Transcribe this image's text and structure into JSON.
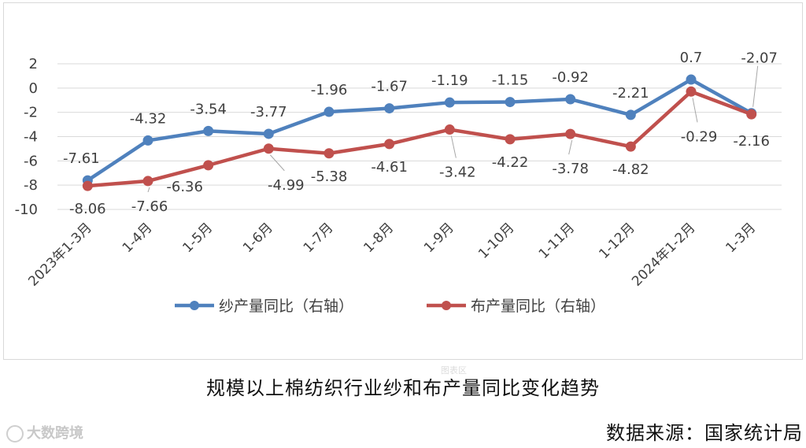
{
  "chart_data": {
    "type": "line",
    "categories": [
      "2023年1-3月",
      "1-4月",
      "1-5月",
      "1-6月",
      "1-7月",
      "1-8月",
      "1-9月",
      "1-10月",
      "1-11月",
      "1-12月",
      "2024年1-2月",
      "1-3月"
    ],
    "series": [
      {
        "name": "纱产量同比（右轴）",
        "color": "#4f81bd",
        "values": [
          -7.61,
          -4.32,
          -3.54,
          -3.77,
          -1.96,
          -1.67,
          -1.19,
          -1.15,
          -0.92,
          -2.21,
          0.7,
          -2.07
        ],
        "labels": [
          "-7.61",
          "-4.32",
          "-3.54",
          "-3.77",
          "-1.96",
          "-1.67",
          "-1.19",
          "-1.15",
          "-0.92",
          "-2.21",
          "0.7",
          "-2.07"
        ]
      },
      {
        "name": "布产量同比（右轴）",
        "color": "#c0504d",
        "values": [
          -8.06,
          -7.66,
          -6.36,
          -4.99,
          -5.38,
          -4.61,
          -3.42,
          -4.22,
          -3.78,
          -4.82,
          -0.29,
          -2.16
        ],
        "labels": [
          "-8.06",
          "-7.66",
          "-6.36",
          "-4.99",
          "-5.38",
          "-4.61",
          "-3.42",
          "-4.22",
          "-3.78",
          "-4.82",
          "-0.29",
          "-2.16"
        ]
      }
    ],
    "yticks": [
      "2",
      "0",
      "-2",
      "-4",
      "-6",
      "-8",
      "-10"
    ],
    "ylim": [
      -10,
      2
    ],
    "grid": true,
    "legend": "bottom"
  },
  "caption": "规模以上棉纺织行业纱和布产量同比变化趋势",
  "source": "数据来源：国家统计局",
  "chart_area_tag": "图表区",
  "watermark": "大数跨境"
}
